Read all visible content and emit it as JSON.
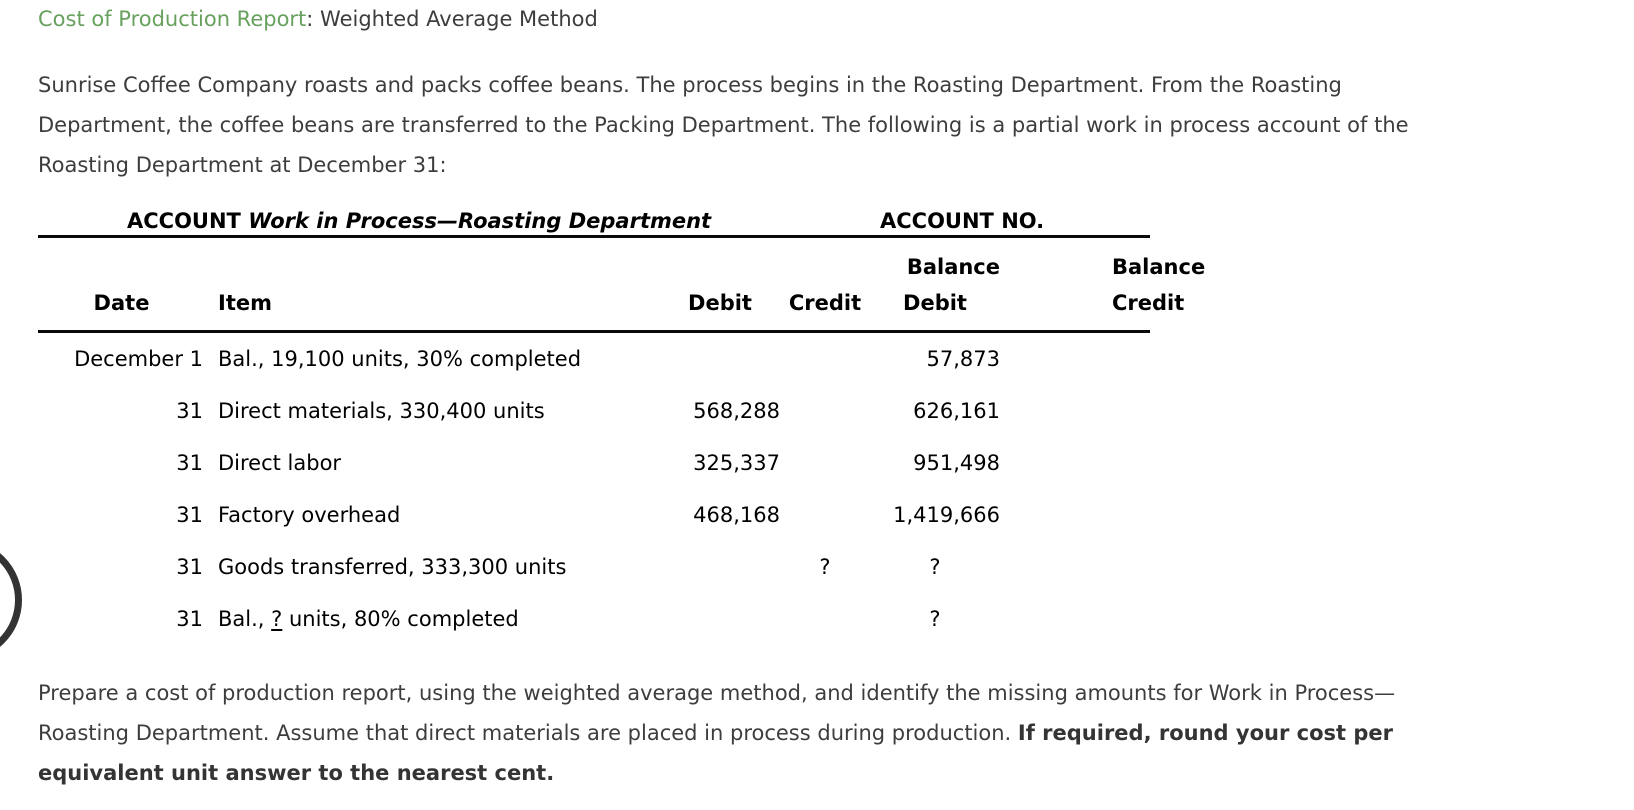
{
  "title": {
    "link_text": "Cost of Production Report",
    "suffix": ": Weighted Average Method"
  },
  "intro": {
    "lines": [
      "Sunrise Coffee Company roasts and packs coffee beans. The process begins in the Roasting Department. From the Roasting",
      "Department, the coffee beans are transferred to the Packing Department. The following is a partial work in process account of the",
      "Roasting Department at December 31:"
    ]
  },
  "account": {
    "account_label": "ACCOUNT",
    "account_name": "Work in Process—Roasting Department",
    "account_no_label": "ACCOUNT NO.",
    "headers": {
      "balance_debit_group": "Balance",
      "balance_credit_group": "Balance",
      "date": "Date",
      "item": "Item",
      "debit": "Debit",
      "credit": "Credit",
      "balance_debit": "Debit",
      "balance_credit": "Credit"
    },
    "rows": [
      {
        "date": "December 1",
        "item": "Bal., 19,100 units, 30% completed",
        "debit": "",
        "credit": "",
        "balance_debit": "57,873",
        "balance_credit": ""
      },
      {
        "date": "31",
        "item": "Direct materials, 330,400 units",
        "debit": "568,288",
        "credit": "",
        "balance_debit": "626,161",
        "balance_credit": ""
      },
      {
        "date": "31",
        "item": "Direct labor",
        "debit": "325,337",
        "credit": "",
        "balance_debit": "951,498",
        "balance_credit": ""
      },
      {
        "date": "31",
        "item": "Factory overhead",
        "debit": "468,168",
        "credit": "",
        "balance_debit": "1,419,666",
        "balance_credit": ""
      },
      {
        "date": "31",
        "item": "Goods transferred, 333,300 units",
        "debit": "",
        "credit": "?",
        "balance_debit": "?",
        "balance_credit": ""
      },
      {
        "date": "31",
        "item_prefix": "Bal., ",
        "item_underlined": "?",
        "item_suffix": " units, 80% completed",
        "debit": "",
        "credit": "",
        "balance_debit": "?",
        "balance_credit": ""
      }
    ]
  },
  "instructions": {
    "line1": "Prepare a cost of production report, using the weighted average method, and identify the missing amounts for Work in Process—",
    "line2_normal": "Roasting Department. Assume that direct materials are placed in process during production. ",
    "line2_bold": "If required, round your cost per",
    "line3_bold": "equivalent unit answer to the nearest cent."
  },
  "colors": {
    "link_green": "#68a15e",
    "body_text": "#3d3d3d",
    "table_text": "#000000"
  }
}
